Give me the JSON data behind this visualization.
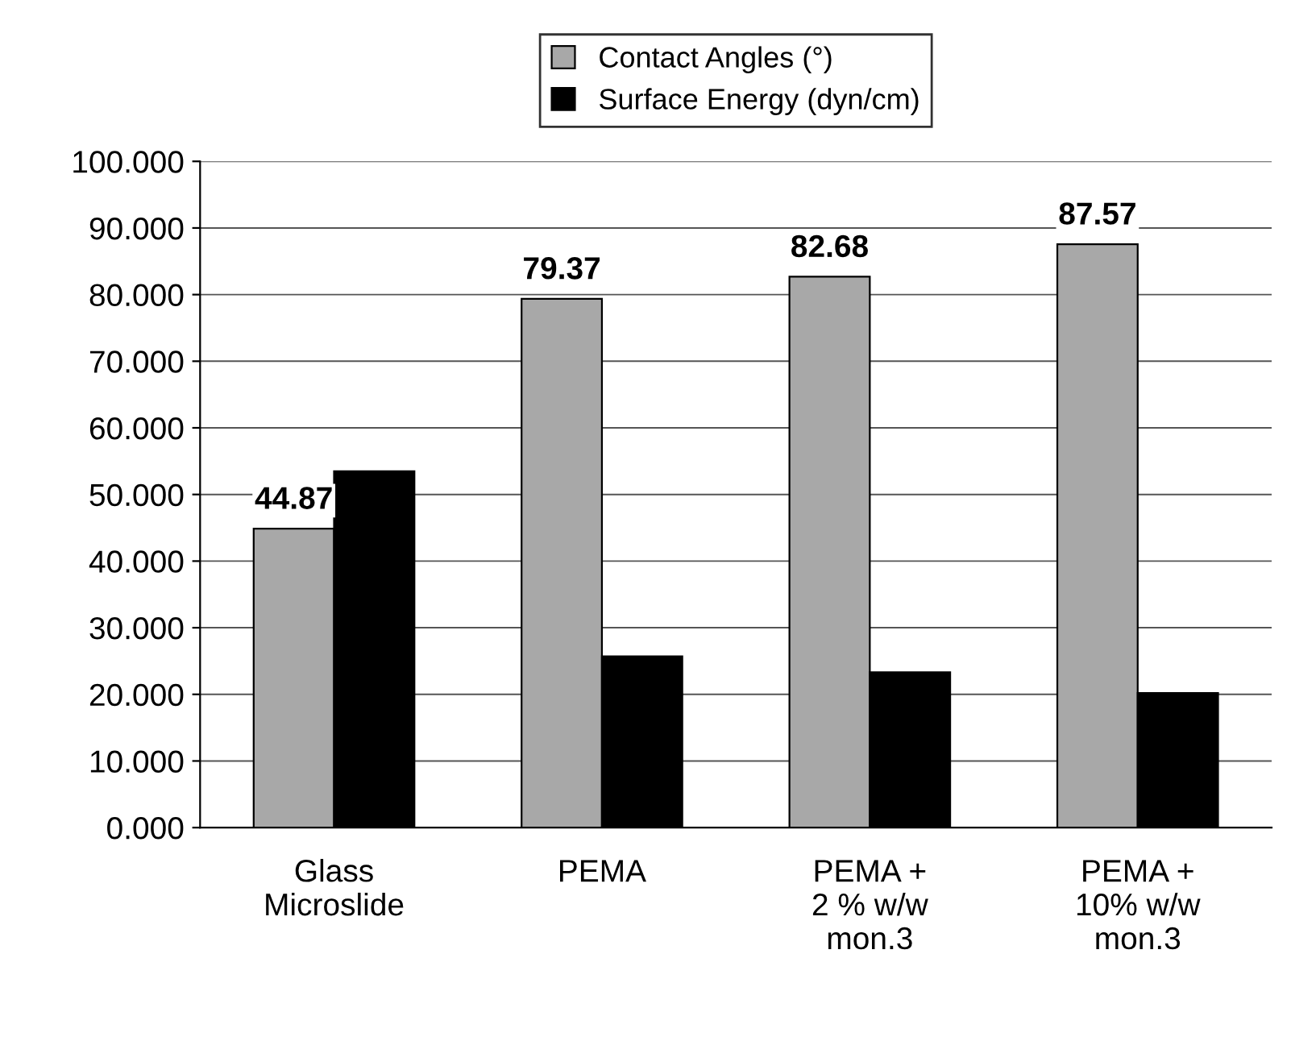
{
  "chart_data": {
    "type": "bar",
    "categories": [
      "Glass\nMicroslide",
      "PEMA",
      "PEMA +\n2 % w/w\nmon.3",
      "PEMA +\n10% w/w\nmon.3"
    ],
    "series": [
      {
        "name": "Contact Angles (°)",
        "color": "#a8a8a8",
        "values": [
          44.87,
          79.37,
          82.68,
          87.57
        ],
        "value_labels": [
          "44.87",
          "79.37",
          "82.68",
          "87.57"
        ]
      },
      {
        "name": "Surface Energy (dyn/cm)",
        "color": "#000000",
        "values": [
          53.5,
          25.7,
          23.3,
          20.2
        ]
      }
    ],
    "ylim": [
      0,
      100
    ],
    "yticks": [
      {
        "value": 0,
        "label": "0.000"
      },
      {
        "value": 10,
        "label": "10.000"
      },
      {
        "value": 20,
        "label": "20.000"
      },
      {
        "value": 30,
        "label": "30.000"
      },
      {
        "value": 40,
        "label": "40.000"
      },
      {
        "value": 50,
        "label": "50.000"
      },
      {
        "value": 60,
        "label": "60.000"
      },
      {
        "value": 70,
        "label": "70.000"
      },
      {
        "value": 80,
        "label": "80.000"
      },
      {
        "value": 90,
        "label": "90.000"
      },
      {
        "value": 100,
        "label": "100.000"
      }
    ],
    "grid": "y",
    "legend": "top"
  }
}
